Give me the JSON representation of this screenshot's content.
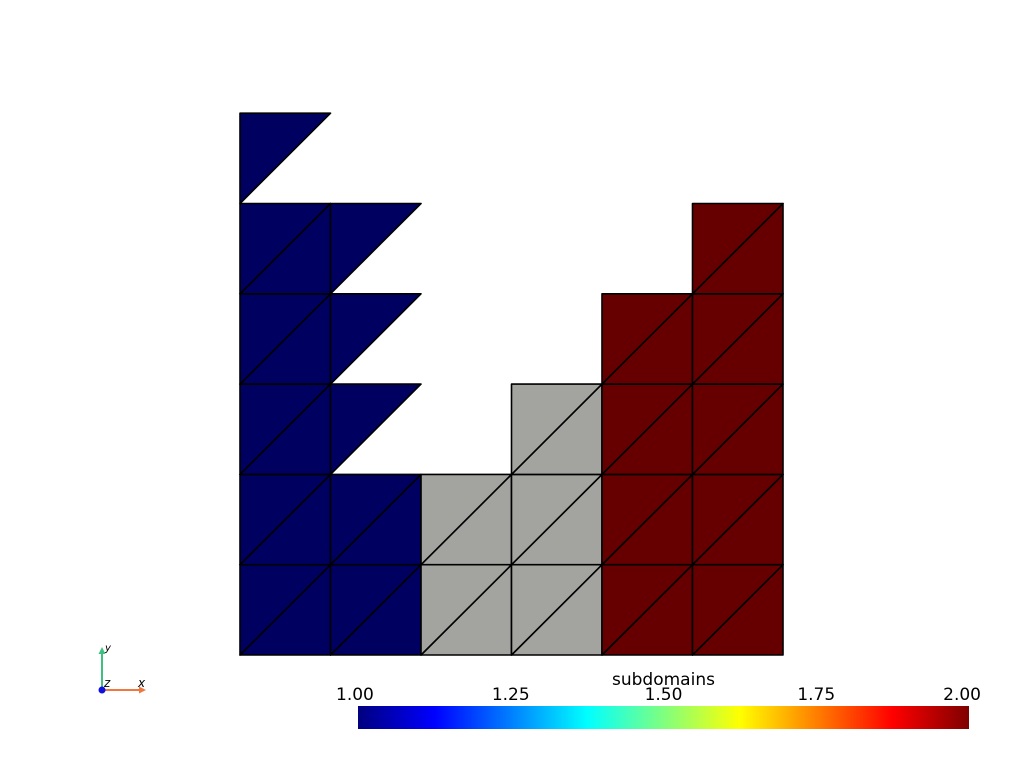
{
  "scene": {
    "background": "#ffffff",
    "edge_color": "#000000",
    "mesh": {
      "grid_columns": 6,
      "grid_rows": 5,
      "diagonal": "bottom-left to top-right",
      "colors": {
        "1": "#000060",
        "1.5": "#a3a3a0",
        "2": "#660000"
      },
      "cells": [
        {
          "col": 0,
          "row": 0,
          "value": 1
        },
        {
          "col": 1,
          "row": 0,
          "value": 1
        },
        {
          "col": 2,
          "row": 0,
          "value": 1.5
        },
        {
          "col": 3,
          "row": 0,
          "value": 1.5
        },
        {
          "col": 4,
          "row": 0,
          "value": 2
        },
        {
          "col": 5,
          "row": 0,
          "value": 2
        },
        {
          "col": 0,
          "row": 1,
          "value": 1
        },
        {
          "col": 1,
          "row": 1,
          "value": 1
        },
        {
          "col": 2,
          "row": 1,
          "value": 1.5
        },
        {
          "col": 3,
          "row": 1,
          "value": 1.5
        },
        {
          "col": 4,
          "row": 1,
          "value": 2
        },
        {
          "col": 5,
          "row": 1,
          "value": 2
        },
        {
          "col": 0,
          "row": 2,
          "value": 1
        },
        {
          "col": 1,
          "row": 2,
          "value": 1,
          "part": "lower"
        },
        {
          "col": 3,
          "row": 2,
          "value": 1.5
        },
        {
          "col": 4,
          "row": 2,
          "value": 2
        },
        {
          "col": 5,
          "row": 2,
          "value": 2
        },
        {
          "col": 0,
          "row": 3,
          "value": 1
        },
        {
          "col": 1,
          "row": 3,
          "value": 1,
          "part": "lower"
        },
        {
          "col": 4,
          "row": 3,
          "value": 2
        },
        {
          "col": 5,
          "row": 3,
          "value": 2
        },
        {
          "col": 0,
          "row": 4,
          "value": 1
        },
        {
          "col": 1,
          "row": 4,
          "value": 1,
          "part": "lower"
        },
        {
          "col": 5,
          "row": 4,
          "value": 2
        },
        {
          "col": 0,
          "row": 5,
          "value": 1,
          "part": "lower"
        }
      ]
    }
  },
  "axes_widget": {
    "x_label": "x",
    "y_label": "y",
    "z_label": "z",
    "x_color": "#f07840",
    "y_color": "#40c080",
    "z_color": "#1010e0"
  },
  "colorbar": {
    "title": "subdomains",
    "range": [
      1.0,
      2.0
    ],
    "ticks": [
      "1.00",
      "1.25",
      "1.50",
      "1.75",
      "2.00"
    ],
    "colormap": "jet",
    "colormap_stops": [
      "#00007f",
      "#0000ff",
      "#007fff",
      "#00ffff",
      "#7fff7f",
      "#ffff00",
      "#ff7f00",
      "#ff0000",
      "#7f0000"
    ]
  }
}
